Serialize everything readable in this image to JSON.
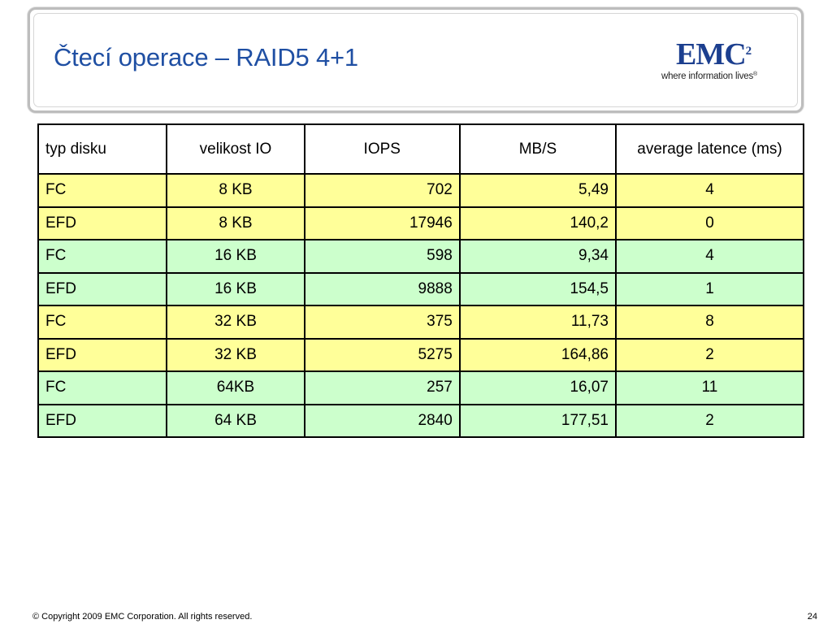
{
  "title": "Čtecí operace – RAID5 4+1",
  "logo": {
    "word": "EMC",
    "superscript": "2",
    "tagline": "where information lives",
    "registered": "®"
  },
  "table": {
    "headers": [
      "typ disku",
      "velikost IO",
      "IOPS",
      "MB/S",
      "average latence (ms)"
    ],
    "rows": [
      {
        "typ": "FC",
        "velikost": "8 KB",
        "iops": "702",
        "mbs": "5,49",
        "latence": "4",
        "color": "#ffff99"
      },
      {
        "typ": "EFD",
        "velikost": "8 KB",
        "iops": "17946",
        "mbs": "140,2",
        "latence": "0",
        "color": "#ffff99"
      },
      {
        "typ": "FC",
        "velikost": "16 KB",
        "iops": "598",
        "mbs": "9,34",
        "latence": "4",
        "color": "#ccffcc"
      },
      {
        "typ": "EFD",
        "velikost": "16 KB",
        "iops": "9888",
        "mbs": "154,5",
        "latence": "1",
        "color": "#ccffcc"
      },
      {
        "typ": "FC",
        "velikost": "32 KB",
        "iops": "375",
        "mbs": "11,73",
        "latence": "8",
        "color": "#ffff99"
      },
      {
        "typ": "EFD",
        "velikost": "32 KB",
        "iops": "5275",
        "mbs": "164,86",
        "latence": "2",
        "color": "#ffff99"
      },
      {
        "typ": "FC",
        "velikost": "64KB",
        "iops": "257",
        "mbs": "16,07",
        "latence": "11",
        "color": "#ccffcc"
      },
      {
        "typ": "EFD",
        "velikost": "64 KB",
        "iops": "2840",
        "mbs": "177,51",
        "latence": "2",
        "color": "#ccffcc"
      }
    ]
  },
  "colors": {
    "title": "#1f4fa3",
    "logo": "#1c3f8f",
    "row_yellow": "#ffff99",
    "row_green": "#ccffcc"
  },
  "footer": {
    "copyright": "© Copyright 2009 EMC Corporation. All rights reserved.",
    "page_number": "24"
  }
}
